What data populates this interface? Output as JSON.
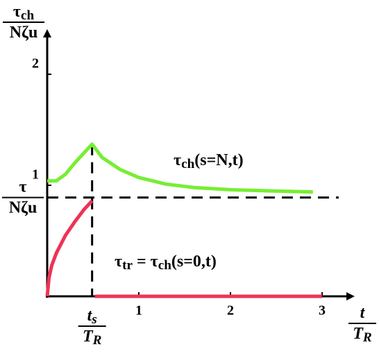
{
  "chart_data": {
    "type": "line",
    "y_label": {
      "symbol": "τ",
      "subscript": "ch",
      "denominator": "Nζu"
    },
    "x_label": {
      "numerator": "t",
      "denominator": "T",
      "denominator_subscript": "R"
    },
    "xlim": [
      0,
      3.3
    ],
    "ylim": [
      0,
      2.3
    ],
    "xticks": [
      1,
      2,
      3
    ],
    "yticks": [
      1,
      2
    ],
    "reference": {
      "y": 0.89,
      "label": {
        "numerator": "τ",
        "denominator": "Nζu"
      }
    },
    "marker": {
      "x": 0.49,
      "label": {
        "numerator": "t",
        "numerator_subscript": "s",
        "denominator": "T",
        "denominator_subscript": "R"
      }
    },
    "series": [
      {
        "color": "#77ee33",
        "label": {
          "symbol": "τ",
          "subscript": "ch",
          "text": "(s=N,t)"
        },
        "x": [
          0,
          0.1,
          0.2,
          0.3,
          0.4,
          0.49,
          0.6,
          0.8,
          1.0,
          1.3,
          1.6,
          2.0,
          2.4,
          2.9
        ],
        "values": [
          1.04,
          1.04,
          1.1,
          1.2,
          1.29,
          1.37,
          1.25,
          1.14,
          1.07,
          1.01,
          0.98,
          0.96,
          0.95,
          0.94
        ]
      },
      {
        "color": "#ee3355",
        "label": {
          "symbol": "τ",
          "subscript": "tr",
          "middle": " = ",
          "symbol2": "τ",
          "subscript2": "ch",
          "text": "(s=0,t)"
        },
        "x": [
          0,
          0.02,
          0.05,
          0.1,
          0.2,
          0.3,
          0.4,
          0.49,
          0.5,
          0.52,
          3.0
        ],
        "values": [
          0,
          0.17,
          0.28,
          0.39,
          0.55,
          0.67,
          0.78,
          0.86,
          null,
          0,
          0
        ]
      }
    ]
  }
}
